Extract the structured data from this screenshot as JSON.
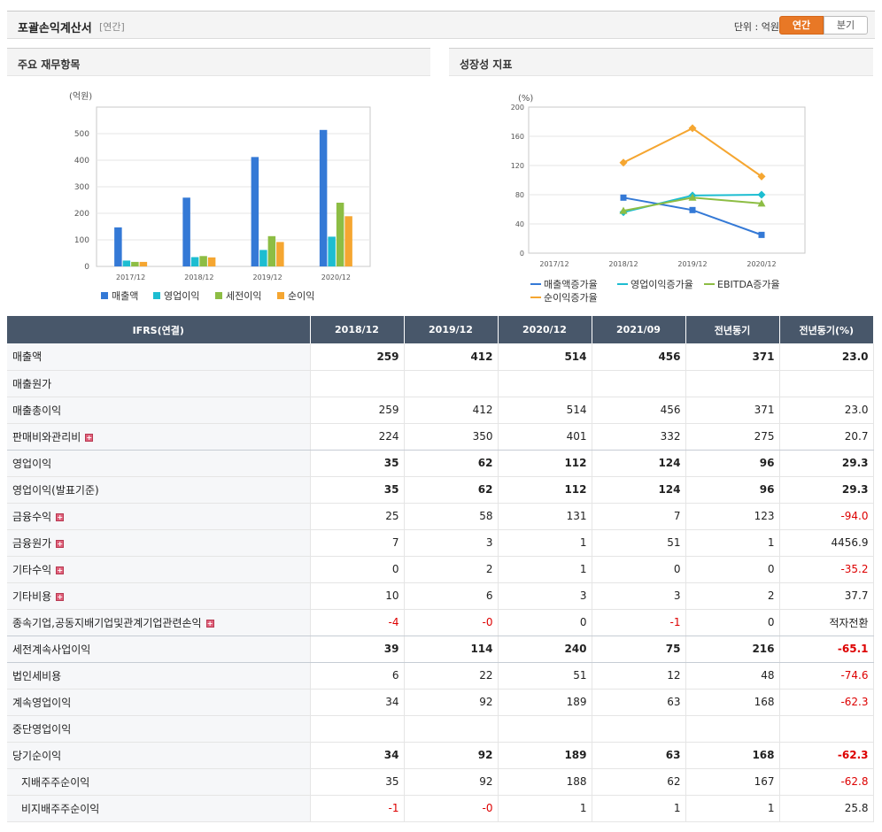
{
  "header": {
    "title": "포괄손익계산서",
    "subtitle": "[연간]",
    "unit": "단위 : 억원",
    "tab_annual": "연간",
    "tab_quarter": "분기"
  },
  "left_panel": {
    "title": "주요 재무항목"
  },
  "right_panel": {
    "title": "성장성 지표"
  },
  "colors": {
    "accent": "#e87826",
    "header_bg": "#48576a",
    "negative": "#dd0000"
  },
  "chart_data": [
    {
      "type": "bar",
      "ylabel": "(억원)",
      "categories": [
        "2017/12",
        "2018/12",
        "2019/12",
        "2020/12"
      ],
      "ylim": [
        0,
        600
      ],
      "yticks": [
        "0",
        "100",
        "200",
        "300",
        "400",
        "500"
      ],
      "series": [
        {
          "name": "매출액",
          "color": "#3479d6",
          "values": [
            147,
            259,
            412,
            514
          ]
        },
        {
          "name": "영업이익",
          "color": "#1dbdd1",
          "values": [
            22,
            35,
            62,
            112
          ]
        },
        {
          "name": "세전이익",
          "color": "#8dbd44",
          "values": [
            17,
            39,
            114,
            240
          ]
        },
        {
          "name": "순이익",
          "color": "#f5a631",
          "values": [
            17,
            34,
            92,
            189
          ]
        }
      ],
      "legend": "bottom"
    },
    {
      "type": "line",
      "ylabel": "(%)",
      "categories": [
        "2017/12",
        "2018/12",
        "2019/12",
        "2020/12"
      ],
      "ylim": [
        0,
        200
      ],
      "yticks": [
        "0",
        "40",
        "80",
        "120",
        "160",
        "200"
      ],
      "series": [
        {
          "name": "매출액증가율",
          "color": "#3479d6",
          "values": [
            null,
            76,
            59,
            25
          ]
        },
        {
          "name": "영업이익증가율",
          "color": "#1dbdd1",
          "values": [
            null,
            56,
            79,
            80
          ]
        },
        {
          "name": "EBITDA증가율",
          "color": "#8dbd44",
          "values": [
            null,
            58,
            76,
            68
          ]
        },
        {
          "name": "순이익증가율",
          "color": "#f5a631",
          "values": [
            null,
            124,
            171,
            105
          ]
        }
      ],
      "legend": "bottom"
    }
  ],
  "table": {
    "headers": [
      "IFRS(연결)",
      "2018/12",
      "2019/12",
      "2020/12",
      "2021/09",
      "전년동기",
      "전년동기(%)"
    ],
    "rows": [
      {
        "label": "매출액",
        "values": [
          "259",
          "412",
          "514",
          "456",
          "371",
          "23.0"
        ]
      },
      {
        "label": "매출원가",
        "values": [
          "",
          "",
          "",
          "",
          "",
          ""
        ]
      },
      {
        "label": "매출총이익",
        "values": [
          "259",
          "412",
          "514",
          "456",
          "371",
          "23.0"
        ]
      },
      {
        "label": "판매비와관리비",
        "values": [
          "224",
          "350",
          "401",
          "332",
          "275",
          "20.7"
        ]
      },
      {
        "label": "영업이익",
        "values": [
          "35",
          "62",
          "112",
          "124",
          "96",
          "29.3"
        ]
      },
      {
        "label": "영업이익(발표기준)",
        "values": [
          "35",
          "62",
          "112",
          "124",
          "96",
          "29.3"
        ]
      },
      {
        "label": "금융수익",
        "values": [
          "25",
          "58",
          "131",
          "7",
          "123",
          "-94.0"
        ]
      },
      {
        "label": "금융원가",
        "values": [
          "7",
          "3",
          "1",
          "51",
          "1",
          "4456.9"
        ]
      },
      {
        "label": "기타수익",
        "values": [
          "0",
          "2",
          "1",
          "0",
          "0",
          "-35.2"
        ]
      },
      {
        "label": "기타비용",
        "values": [
          "10",
          "6",
          "3",
          "3",
          "2",
          "37.7"
        ]
      },
      {
        "label": "종속기업,공동지배기업및관계기업관련손익",
        "values": [
          "-4",
          "-0",
          "0",
          "-1",
          "0",
          "적자전환"
        ]
      },
      {
        "label": "세전계속사업이익",
        "values": [
          "39",
          "114",
          "240",
          "75",
          "216",
          "-65.1"
        ]
      },
      {
        "label": "법인세비용",
        "values": [
          "6",
          "22",
          "51",
          "12",
          "48",
          "-74.6"
        ]
      },
      {
        "label": "계속영업이익",
        "values": [
          "34",
          "92",
          "189",
          "63",
          "168",
          "-62.3"
        ]
      },
      {
        "label": "중단영업이익",
        "values": [
          "",
          "",
          "",
          "",
          "",
          ""
        ]
      },
      {
        "label": "당기순이익",
        "values": [
          "34",
          "92",
          "189",
          "63",
          "168",
          "-62.3"
        ]
      },
      {
        "label": "지배주주순이익",
        "values": [
          "35",
          "92",
          "188",
          "62",
          "167",
          "-62.8"
        ]
      },
      {
        "label": "비지배주주순이익",
        "values": [
          "-1",
          "-0",
          "1",
          "1",
          "1",
          "25.8"
        ]
      }
    ]
  }
}
